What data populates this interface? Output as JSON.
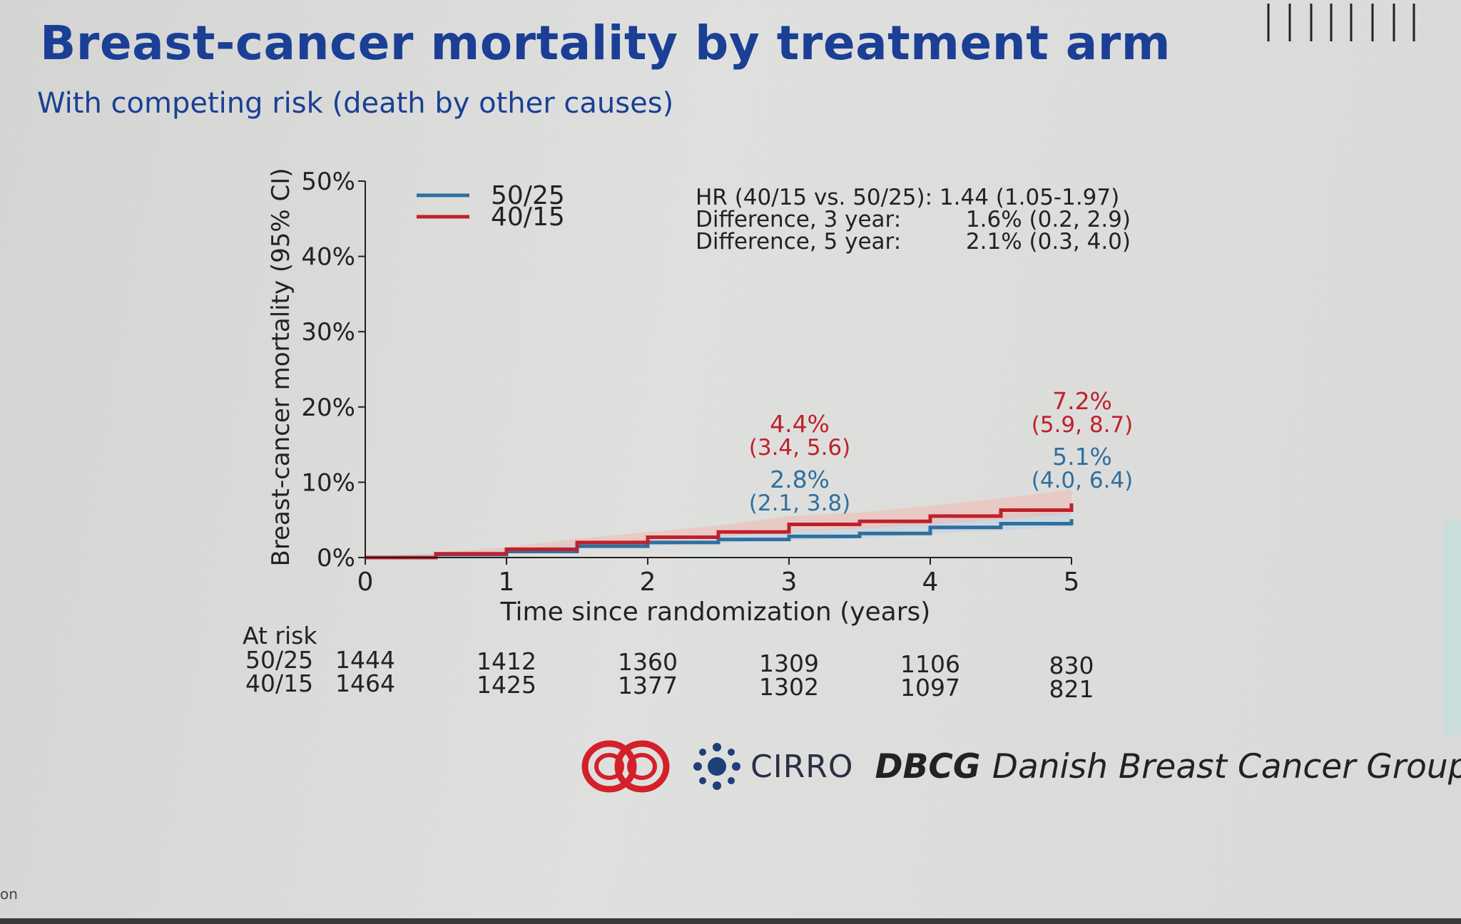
{
  "slide": {
    "title": "Breast-cancer mortality by treatment arm",
    "subtitle": "With competing risk (death by other causes)"
  },
  "stats": {
    "hr_line": "HR (40/15 vs. 50/25): 1.44 (1.05-1.97)",
    "diff3_label": "Difference, 3 year:",
    "diff3_value": "1.6% (0.2, 2.9)",
    "diff5_label": "Difference, 5 year:",
    "diff5_value": "2.1% (0.3, 4.0)"
  },
  "at_risk": {
    "header": "At risk",
    "rows": [
      {
        "label": "50/25",
        "values": [
          "1444",
          "1412",
          "1360",
          "1309",
          "1106",
          "830"
        ]
      },
      {
        "label": "40/15",
        "values": [
          "1464",
          "1425",
          "1377",
          "1302",
          "1097",
          "821"
        ]
      }
    ]
  },
  "logos": {
    "cirro": "CIRRO",
    "dbcg": "DBCG",
    "dbcg_full": "Danish Breast Cancer Group"
  },
  "corner_text": "on",
  "colors": {
    "title": "#1b3f95",
    "blue_series": "#2f6f9f",
    "red_series": "#c0202c",
    "red_ci": "#f0b8b0",
    "blue_ci": "#b9d2e4",
    "cirro_logo": "#1e3f7a",
    "red_logo": "#d4202a"
  },
  "chart_data": {
    "type": "line",
    "xlabel": "Time since randomization (years)",
    "ylabel": "Breast-cancer mortality (95% CI)",
    "xlim": [
      0,
      5
    ],
    "ylim": [
      0,
      50
    ],
    "x_ticks": [
      "0",
      "1",
      "2",
      "3",
      "4",
      "5"
    ],
    "y_ticks": [
      "0%",
      "10%",
      "20%",
      "30%",
      "40%",
      "50%"
    ],
    "legend_position": "top-left",
    "series": [
      {
        "name": "50/25",
        "color": "#2f6f9f",
        "x": [
          0,
          0.5,
          1,
          1.5,
          2,
          2.5,
          3,
          3.5,
          4,
          4.5,
          5
        ],
        "y": [
          0,
          0.4,
          0.8,
          1.5,
          2.0,
          2.4,
          2.8,
          3.2,
          4.0,
          4.5,
          5.1
        ],
        "annotations": [
          {
            "x": 3,
            "value": "2.8%",
            "ci": "(2.1, 3.8)"
          },
          {
            "x": 5,
            "value": "5.1%",
            "ci": "(4.0, 6.4)"
          }
        ]
      },
      {
        "name": "40/15",
        "color": "#c0202c",
        "x": [
          0,
          0.5,
          1,
          1.5,
          2,
          2.5,
          3,
          3.5,
          4,
          4.5,
          5
        ],
        "y": [
          0,
          0.5,
          1.1,
          2.0,
          2.7,
          3.4,
          4.4,
          4.8,
          5.5,
          6.3,
          7.2
        ],
        "annotations": [
          {
            "x": 3,
            "value": "4.4%",
            "ci": "(3.4, 5.6)"
          },
          {
            "x": 5,
            "value": "7.2%",
            "ci": "(5.9, 8.7)"
          }
        ]
      }
    ]
  }
}
